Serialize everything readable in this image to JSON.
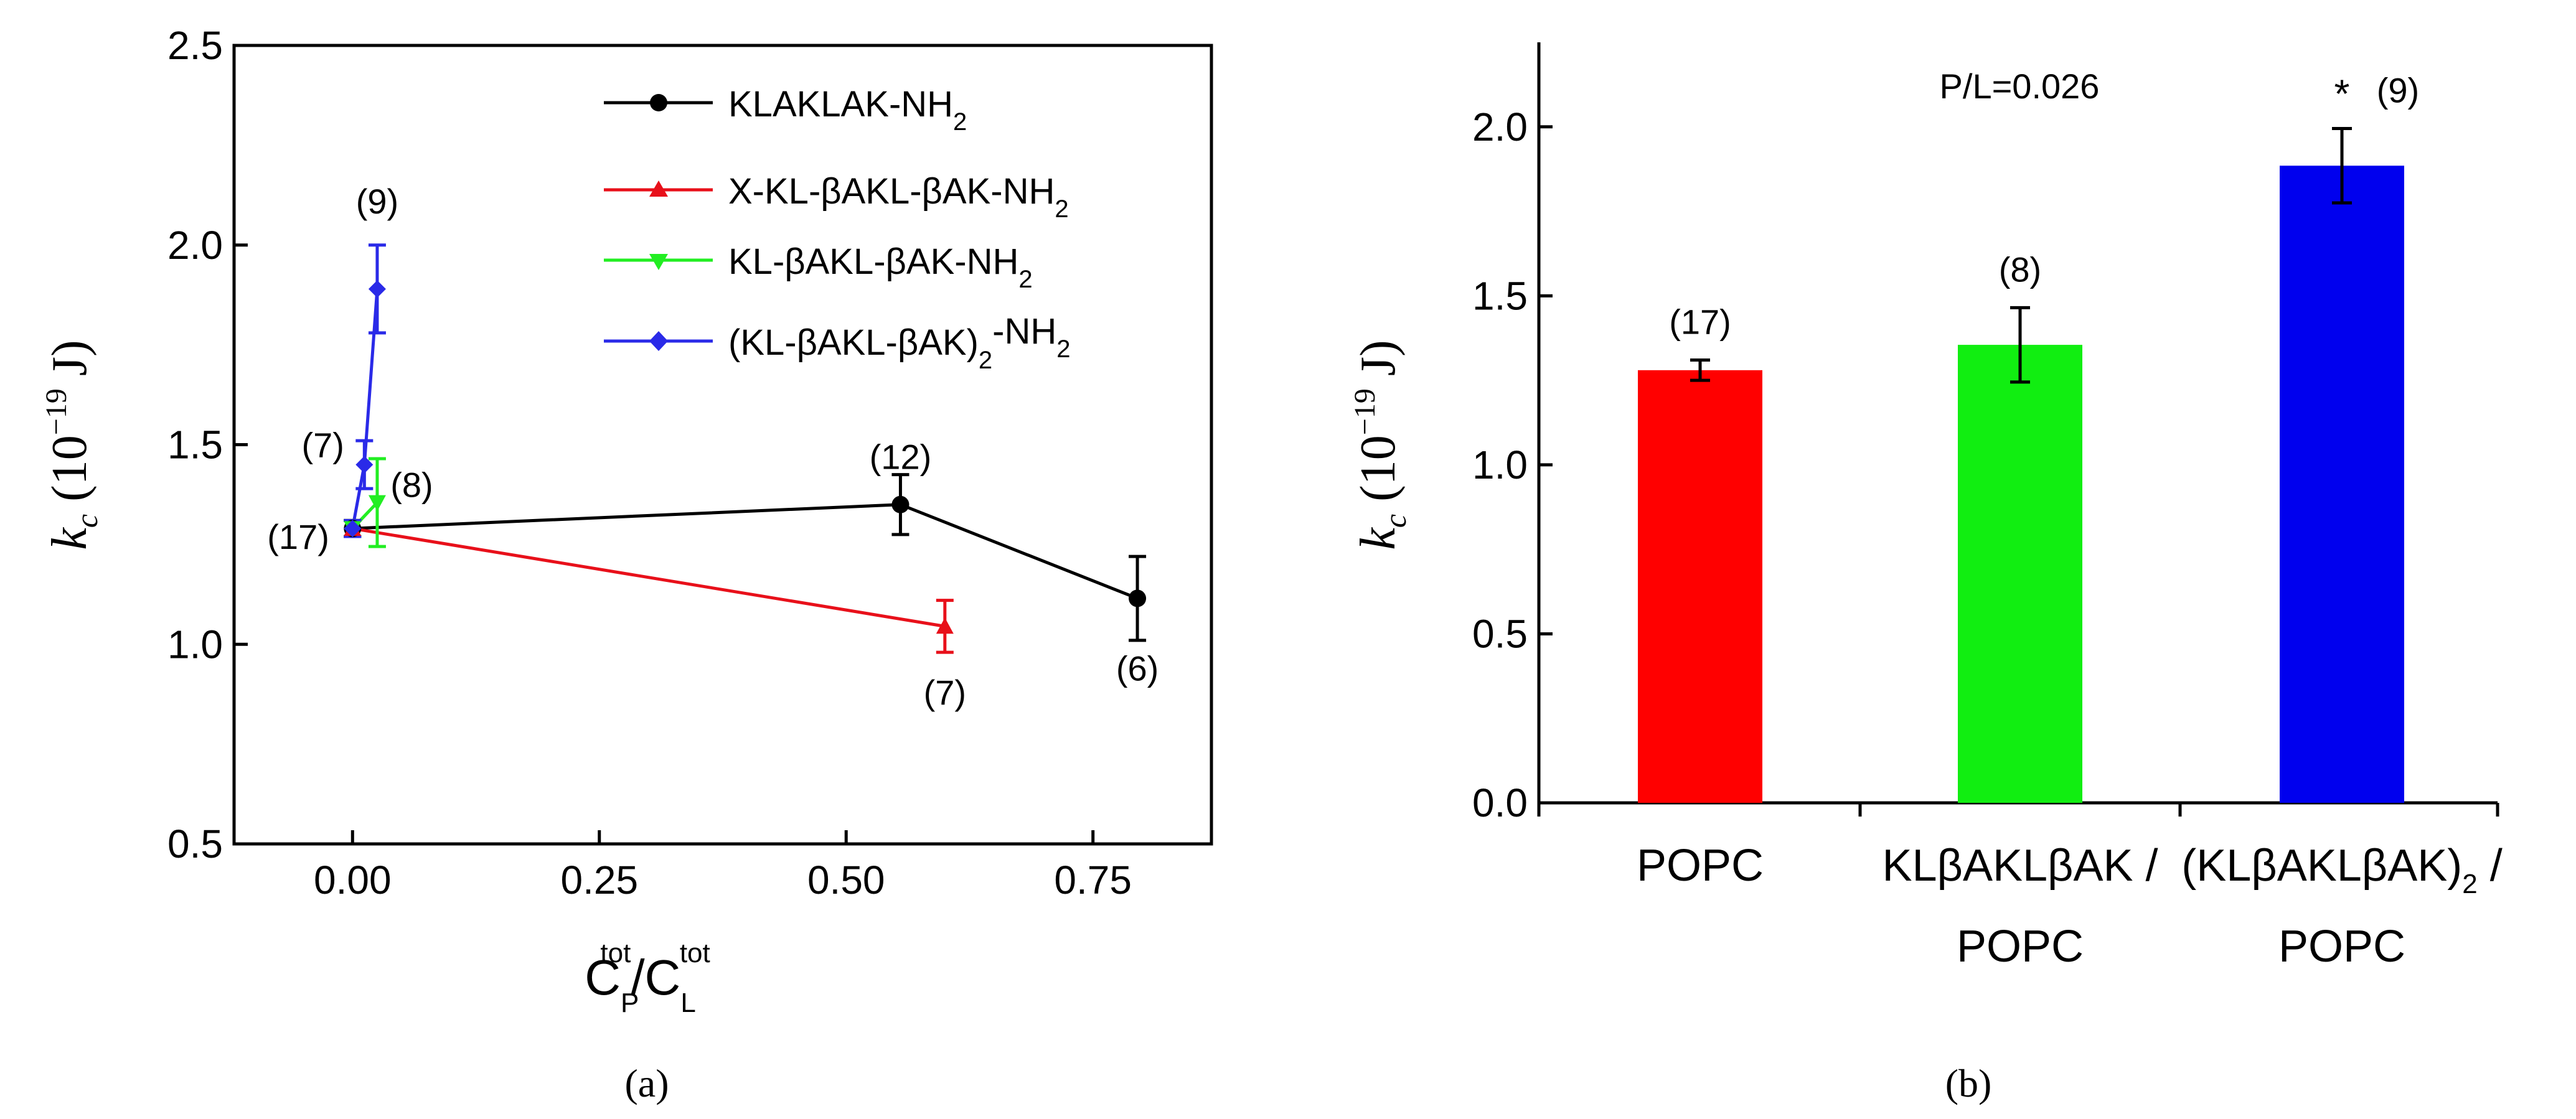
{
  "chart_data": [
    {
      "panel_label": "(a)",
      "type": "line",
      "xlabel": {
        "main": "C",
        "sub_p": "P",
        "sup_p": "tot",
        "slash": "/",
        "main2": "C",
        "sub_l": "L",
        "sup_l": "tot"
      },
      "ylabel": {
        "italic": "k",
        "sub": "c",
        "rest": " (10",
        "sup": "−19",
        "unit": " J)"
      },
      "xlim": [
        -0.12,
        0.87
      ],
      "ylim": [
        0.5,
        2.5
      ],
      "xticks": [
        "0.00",
        "0.25",
        "0.50",
        "0.75"
      ],
      "xtick_values": [
        0,
        0.25,
        0.5,
        0.75
      ],
      "yticks": [
        "0.5",
        "1.0",
        "1.5",
        "2.0",
        "2.5"
      ],
      "ytick_values": [
        0.5,
        1.0,
        1.5,
        2.0,
        2.5
      ],
      "series": [
        {
          "name": "KLAKLAK-NH",
          "name_sub": "2",
          "color": "#000000",
          "marker": "circle",
          "points": [
            {
              "x": 0.0,
              "y": 1.29,
              "err": 0.02
            },
            {
              "x": 0.555,
              "y": 1.35,
              "err": 0.075
            },
            {
              "x": 0.795,
              "y": 1.115,
              "err": 0.105
            }
          ]
        },
        {
          "name": "X-KL-βAKL-βAK-NH",
          "name_sub": "2",
          "color": "#e8101a",
          "marker": "triangle-up",
          "points": [
            {
              "x": 0.0,
              "y": 1.29,
              "err": 0.02
            },
            {
              "x": 0.6,
              "y": 1.045,
              "err": 0.065
            }
          ]
        },
        {
          "name": "KL-βAKL-βAK-NH",
          "name_sub": "2",
          "color": "#22ee22",
          "marker": "triangle-down",
          "points": [
            {
              "x": 0.0,
              "y": 1.29,
              "err": 0.02
            },
            {
              "x": 0.025,
              "y": 1.355,
              "err": 0.11
            }
          ]
        },
        {
          "name": "(KL-βAKL-βAK)",
          "name_sub": "2",
          "name_suffix": "-NH",
          "name_sub2": "2",
          "color": "#2a2ae8",
          "marker": "diamond",
          "points": [
            {
              "x": 0.0,
              "y": 1.29,
              "err": 0.02
            },
            {
              "x": 0.012,
              "y": 1.45,
              "err": 0.06
            },
            {
              "x": 0.025,
              "y": 1.89,
              "err": 0.11
            }
          ]
        }
      ],
      "annotations": [
        {
          "text": "(9)",
          "x": 0.025,
          "y": 2.11
        },
        {
          "text": "(7)",
          "x": -0.03,
          "y": 1.5
        },
        {
          "text": "(8)",
          "x": 0.06,
          "y": 1.4
        },
        {
          "text": "(17)",
          "x": -0.055,
          "y": 1.27
        },
        {
          "text": "(12)",
          "x": 0.555,
          "y": 1.47
        },
        {
          "text": "(7)",
          "x": 0.6,
          "y": 0.88
        },
        {
          "text": "(6)",
          "x": 0.795,
          "y": 0.94
        }
      ]
    },
    {
      "panel_label": "(b)",
      "type": "bar",
      "title": "P/L=0.026",
      "ylabel": {
        "italic": "k",
        "sub": "c",
        "rest": " (10",
        "sup": "−19",
        "unit": " J)"
      },
      "ylim": [
        0.0,
        2.25
      ],
      "yticks": [
        "0.0",
        "0.5",
        "1.0",
        "1.5",
        "2.0"
      ],
      "ytick_values": [
        0,
        0.5,
        1.0,
        1.5,
        2.0
      ],
      "categories": [
        {
          "line1": "POPC",
          "line2": ""
        },
        {
          "line1": "KLβAKLβAK /",
          "line2": "POPC"
        },
        {
          "line1": "(KLβAKLβAK)",
          "line1_sub": "2",
          "line1_suffix": " /",
          "line2": "POPC"
        }
      ],
      "values": [
        1.28,
        1.355,
        1.885
      ],
      "errors": [
        0.03,
        0.11,
        0.11
      ],
      "colors": [
        "#ff0000",
        "#11ee11",
        "#0000ee"
      ],
      "labels": [
        "(17)",
        "(8)",
        "(9)"
      ],
      "significance": [
        "",
        "",
        "*"
      ]
    }
  ]
}
